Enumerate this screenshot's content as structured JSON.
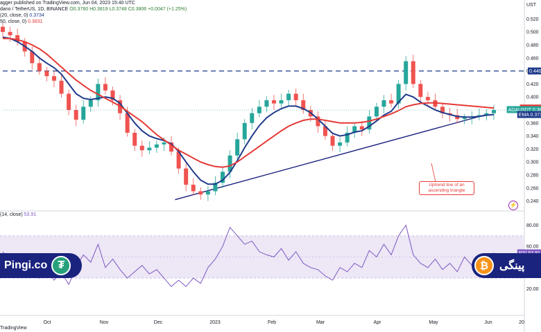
{
  "header": {
    "publisher": "agger published on TradingView.com, Jun 04, 2023 15:40 UTC",
    "symbol": "dano / TetherUS, 1D, BINANCE",
    "ohlc": "O0.3760 H0.3819 L0.3748 C0.3806 +0.0047 (+1.25%)",
    "ema_label": "(20, close, 0)",
    "ema_value": "0.3734",
    "ma_label": "50, close, 0)",
    "ma_value": "0.3831",
    "rsi_label": "(14, close)",
    "rsi_value": "53.91"
  },
  "price_axis": {
    "unit_label": "UST",
    "ticks": [
      "0.520",
      "0.500",
      "0.480",
      "0.460",
      "0.440",
      "0.420",
      "0.400",
      "0.380",
      "0.360",
      "0.340",
      "0.320",
      "0.300",
      "0.280",
      "0.260",
      "0.240"
    ],
    "tags": [
      {
        "label": "0.440",
        "color": "#1e3a8a"
      },
      {
        "label": "MA 0.383",
        "color": "#e53935"
      },
      {
        "label": "ADAUSDT 0.380",
        "color": "#26a69a"
      },
      {
        "label": "EMA 0.373",
        "color": "#1e3a8a"
      },
      {
        "label": "RSI 53.91",
        "color": "#7e57c2"
      }
    ]
  },
  "rsi_axis": {
    "ticks": [
      "80.00",
      "60.00",
      "40.00",
      "20.00"
    ]
  },
  "time_axis": {
    "labels": [
      "Oct",
      "Nov",
      "Dec",
      "2023",
      "Feb",
      "Mar",
      "Apr",
      "May",
      "Jun",
      "20"
    ]
  },
  "annotation": "Uptrend line of an ascending triangle",
  "brand": {
    "left": "Pingi.co",
    "right": "پینگی",
    "tether_symbol": "₮",
    "btc_symbol": "₿"
  },
  "footer": "TradingView",
  "colors": {
    "up": "#26a69a",
    "down": "#ef5350",
    "ema": "#1e3a8a",
    "ma": "#e53935",
    "rsi": "#7e57c2",
    "rsi_band": "#ede7f6"
  },
  "chart_data": [
    {
      "type": "candlestick",
      "title": "ADA / TetherUS, 1D, BINANCE",
      "x_labels": [
        "Oct",
        "Nov",
        "Dec",
        "2023",
        "Feb",
        "Mar",
        "Apr",
        "May",
        "Jun"
      ],
      "ylim": [
        0.23,
        0.53
      ],
      "horizontal_lines": [
        {
          "value": 0.44,
          "style": "dashed",
          "label": "0.440"
        }
      ],
      "trendline": {
        "from": {
          "month": "Jan 2023",
          "value": 0.242
        },
        "to": {
          "month": "Jun 2023",
          "value": 0.373
        },
        "label": "Uptrend line of an ascending triangle"
      },
      "close_series": [
        0.5,
        0.495,
        0.485,
        0.47,
        0.452,
        0.44,
        0.432,
        0.425,
        0.405,
        0.38,
        0.365,
        0.385,
        0.395,
        0.42,
        0.41,
        0.395,
        0.375,
        0.345,
        0.325,
        0.318,
        0.322,
        0.327,
        0.33,
        0.316,
        0.29,
        0.265,
        0.255,
        0.25,
        0.255,
        0.268,
        0.285,
        0.31,
        0.335,
        0.36,
        0.375,
        0.385,
        0.395,
        0.39,
        0.395,
        0.405,
        0.395,
        0.38,
        0.37,
        0.355,
        0.34,
        0.325,
        0.33,
        0.345,
        0.355,
        0.35,
        0.37,
        0.385,
        0.395,
        0.39,
        0.42,
        0.455,
        0.42,
        0.4,
        0.395,
        0.385,
        0.375,
        0.372,
        0.366,
        0.368,
        0.37,
        0.372,
        0.375,
        0.38
      ],
      "series": [
        {
          "name": "EMA (20, close, 0)",
          "color": "#1e3a8a",
          "values": [
            0.492,
            0.49,
            0.485,
            0.478,
            0.47,
            0.46,
            0.452,
            0.445,
            0.435,
            0.42,
            0.405,
            0.398,
            0.396,
            0.398,
            0.4,
            0.398,
            0.39,
            0.375,
            0.36,
            0.348,
            0.34,
            0.336,
            0.333,
            0.328,
            0.316,
            0.3,
            0.285,
            0.272,
            0.266,
            0.266,
            0.272,
            0.284,
            0.302,
            0.322,
            0.34,
            0.356,
            0.368,
            0.376,
            0.382,
            0.386,
            0.386,
            0.382,
            0.376,
            0.366,
            0.355,
            0.344,
            0.34,
            0.342,
            0.346,
            0.348,
            0.355,
            0.363,
            0.372,
            0.378,
            0.392,
            0.404,
            0.4,
            0.392,
            0.386,
            0.38,
            0.376,
            0.373,
            0.37,
            0.369,
            0.369,
            0.37,
            0.372,
            0.373
          ]
        },
        {
          "name": "MA (50, close, 0)",
          "color": "#e53935",
          "values": [
            0.49,
            0.49,
            0.488,
            0.485,
            0.48,
            0.474,
            0.466,
            0.456,
            0.446,
            0.436,
            0.426,
            0.418,
            0.41,
            0.404,
            0.398,
            0.392,
            0.386,
            0.378,
            0.37,
            0.362,
            0.352,
            0.342,
            0.334,
            0.326,
            0.318,
            0.312,
            0.306,
            0.3,
            0.296,
            0.293,
            0.292,
            0.294,
            0.3,
            0.308,
            0.316,
            0.324,
            0.332,
            0.34,
            0.348,
            0.355,
            0.36,
            0.364,
            0.366,
            0.366,
            0.364,
            0.362,
            0.36,
            0.36,
            0.36,
            0.361,
            0.363,
            0.366,
            0.37,
            0.374,
            0.379,
            0.385,
            0.388,
            0.39,
            0.391,
            0.391,
            0.39,
            0.389,
            0.388,
            0.387,
            0.386,
            0.385,
            0.384,
            0.383
          ]
        }
      ]
    },
    {
      "type": "line",
      "title": "RSI (14, close)",
      "ylim": [
        15,
        85
      ],
      "bands": [
        30,
        70
      ],
      "series": [
        {
          "name": "RSI",
          "color": "#7e57c2",
          "values": [
            55,
            45,
            50,
            38,
            42,
            30,
            38,
            28,
            35,
            24,
            40,
            52,
            45,
            62,
            40,
            48,
            38,
            30,
            36,
            42,
            34,
            38,
            30,
            22,
            28,
            22,
            30,
            25,
            40,
            48,
            60,
            78,
            70,
            62,
            65,
            55,
            52,
            50,
            58,
            47,
            55,
            44,
            40,
            38,
            32,
            28,
            40,
            36,
            44,
            40,
            56,
            50,
            62,
            52,
            70,
            80,
            52,
            44,
            40,
            48,
            38,
            44,
            36,
            50,
            42,
            48,
            44,
            54
          ]
        }
      ]
    }
  ]
}
